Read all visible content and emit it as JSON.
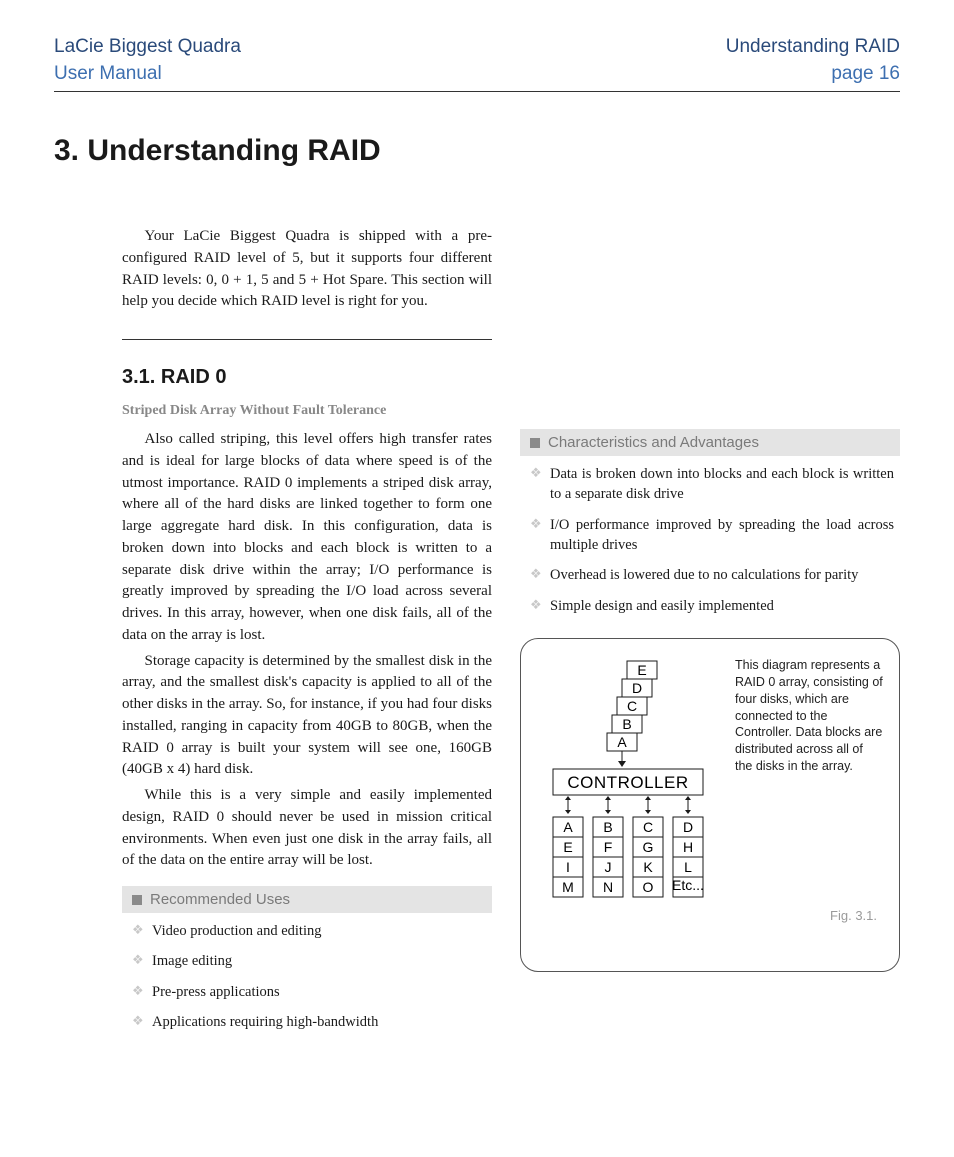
{
  "header": {
    "product": "LaCie Biggest Quadra",
    "doc_type": "User Manual",
    "chapter": "Understanding RAID",
    "page": "page 16",
    "title_color": "#2a4a7a",
    "sub_color": "#3d6fb0"
  },
  "section": {
    "number_title": "3. Understanding RAID",
    "intro": "Your LaCie Biggest Quadra is shipped with a pre-configured RAID level of 5, but it supports four different RAID levels: 0, 0 + 1, 5 and 5 + Hot Spare. This section will help you decide which RAID level is right for you."
  },
  "raid0": {
    "heading": "3.1. RAID 0",
    "subtitle": "Striped Disk Array Without Fault Tolerance",
    "p1": "Also called striping, this level offers high transfer rates and is ideal for large blocks of data where speed is of the utmost importance. RAID 0 implements a striped disk array, where all of the hard disks are linked together to form one large aggregate hard disk. In this configuration, data is broken down into blocks and each block is written to a separate disk drive within the array; I/O performance is greatly improved by spreading the I/O load across several drives. In this array, however, when one disk fails, all of the data on the array is lost.",
    "p2": "Storage capacity is determined by the smallest disk in the array, and the smallest disk's capacity is applied to all of the other disks in the array. So, for instance, if you had four disks installed, ranging in capacity from 40GB to 80GB, when the RAID 0 array is built your system will see one, 160GB (40GB x 4) hard disk.",
    "p3": "While this is a very simple and easily implemented design, RAID 0 should never be used in mission critical environments. When even just one disk in the array fails, all of the data on the entire array will be lost."
  },
  "recommended": {
    "title": "Recommended Uses",
    "items": [
      "Video production and editing",
      "Image editing",
      "Pre-press applications",
      "Applications requiring high-bandwidth"
    ]
  },
  "characteristics": {
    "title": "Characteristics and Advantages",
    "items": [
      "Data is broken down into blocks and each block is written to a separate disk drive",
      "I/O performance improved by spreading the load across multiple drives",
      "Overhead is lowered due to no calculations for parity",
      "Simple design and easily implemented"
    ]
  },
  "figure": {
    "caption": "This diagram represents a RAID 0 array, consisting of four disks, which are connected to the Controller. Data blocks are distributed across all of the disks in the array.",
    "label": "Fig. 3.1.",
    "controller_label": "CONTROLLER",
    "stack": [
      "E",
      "D",
      "C",
      "B",
      "A"
    ],
    "disks": [
      [
        "A",
        "E",
        "I",
        "M"
      ],
      [
        "B",
        "F",
        "J",
        "N"
      ],
      [
        "C",
        "G",
        "K",
        "O"
      ],
      [
        "D",
        "H",
        "L",
        "Etc..."
      ]
    ],
    "colors": {
      "stroke": "#1a1a1a",
      "fill": "#ffffff",
      "etc_font_size": 8
    }
  },
  "style": {
    "background": "#ffffff",
    "text_color": "#1a1a1a",
    "box_header_bg": "#e4e4e4",
    "box_header_text": "#7a7a7a",
    "bullet_glyph_color": "#c8c8c8",
    "rule_color": "#333333",
    "figure_border_radius": 18,
    "font_body": "Adobe Caslon Pro / Georgia serif",
    "font_headings": "Futura / Century Gothic sans-serif",
    "h1_size_pt": 22,
    "h2_size_pt": 15,
    "body_size_pt": 11
  }
}
